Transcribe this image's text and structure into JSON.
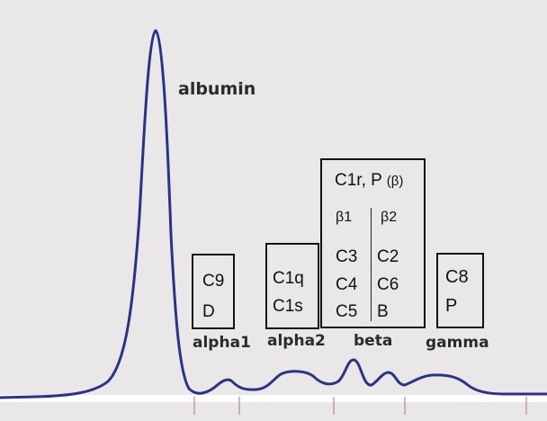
{
  "labels": {
    "albumin": "albumin",
    "alpha1": "alpha1",
    "alpha2": "alpha2",
    "beta": "beta",
    "gamma": "gamma"
  },
  "boxes": {
    "alpha1": {
      "lines": [
        "C9",
        "D"
      ]
    },
    "alpha2": {
      "lines": [
        "C1q",
        "C1s"
      ]
    },
    "beta": {
      "header": "C1r, P",
      "header_symbol": "(β)",
      "sub_left": "β1",
      "sub_right": "β2",
      "left_col": [
        "C3",
        "C4",
        "C5"
      ],
      "right_col": [
        "C2",
        "C6",
        "B"
      ]
    },
    "gamma": {
      "lines": [
        "C8",
        "P"
      ]
    }
  },
  "colors": {
    "curve": "#2a3386",
    "background": "#e9e7e7",
    "baseline": "#ffffff",
    "tick": "#b58a8a"
  }
}
